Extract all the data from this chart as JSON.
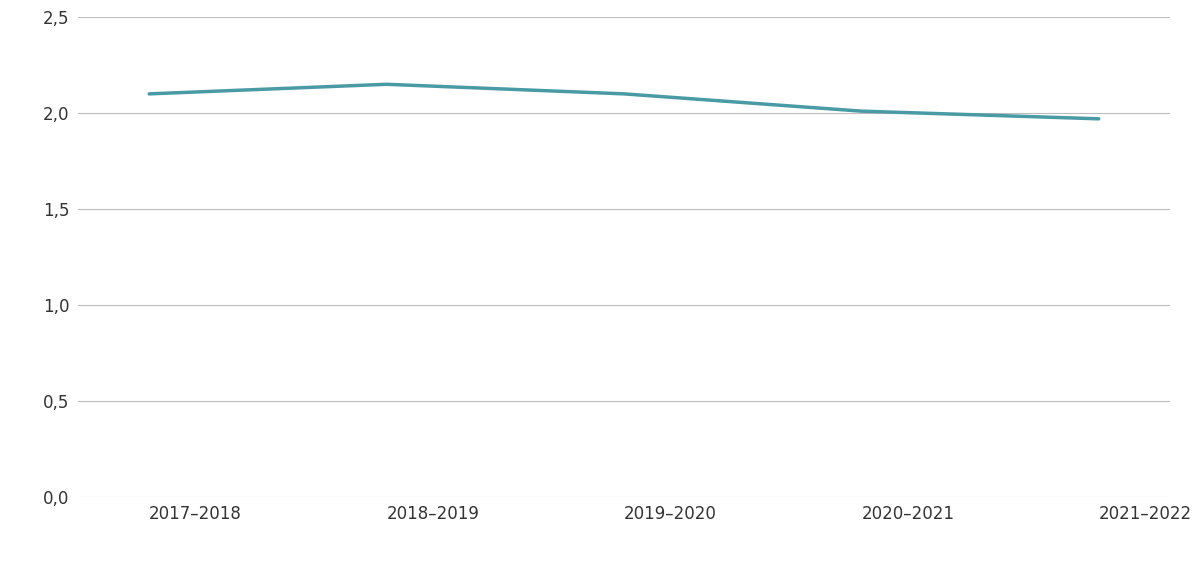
{
  "x_labels": [
    "2017–2018",
    "2018–2019",
    "2019–2020",
    "2020–2021",
    "2021–2022"
  ],
  "y_values": [
    2.1,
    2.15,
    2.1,
    2.01,
    1.97
  ],
  "line_color": "#4a9aa5",
  "line_width": 2.5,
  "ylim": [
    0.0,
    2.5
  ],
  "yticks": [
    0.0,
    0.5,
    1.0,
    1.5,
    2.0,
    2.5
  ],
  "ytick_labels": [
    "0,0",
    "0,5",
    "1,0",
    "1,5",
    "2,0",
    "2,5"
  ],
  "background_color": "#ffffff",
  "grid_color": "#bbbbbb",
  "tick_fontsize": 12,
  "label_fontsize": 12
}
